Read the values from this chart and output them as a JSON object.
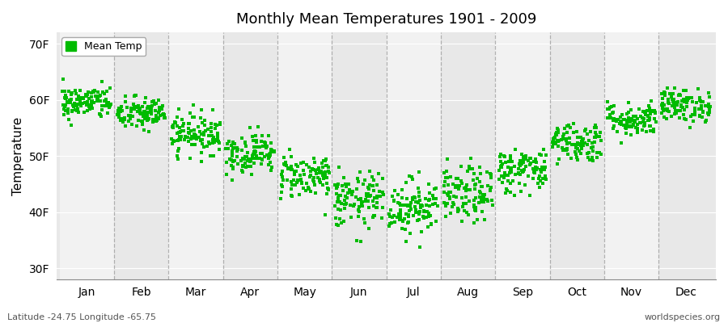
{
  "title": "Monthly Mean Temperatures 1901 - 2009",
  "ylabel": "Temperature",
  "yticks": [
    30,
    40,
    50,
    60,
    70
  ],
  "ytick_labels": [
    "30F",
    "40F",
    "50F",
    "60F",
    "70F"
  ],
  "ylim": [
    28,
    72
  ],
  "month_labels": [
    "Jan",
    "Feb",
    "Mar",
    "Apr",
    "May",
    "Jun",
    "Jul",
    "Aug",
    "Sep",
    "Oct",
    "Nov",
    "Dec"
  ],
  "dot_color": "#00BB00",
  "dot_size": 5,
  "legend_label": "Mean Temp",
  "fig_background_color": "#FFFFFF",
  "plot_background_color": "#E8E8E8",
  "band_light_color": "#F2F2F2",
  "dashed_color": "#888888",
  "subtitle_left": "Latitude -24.75 Longitude -65.75",
  "subtitle_right": "worldspecies.org",
  "n_years": 109,
  "mean_temps_F": [
    59.5,
    57.5,
    54.0,
    50.5,
    46.5,
    42.0,
    41.0,
    43.0,
    47.5,
    52.5,
    56.5,
    59.0
  ],
  "std_temps_F": [
    1.5,
    1.5,
    1.8,
    1.8,
    2.0,
    2.5,
    2.5,
    2.5,
    2.0,
    1.8,
    1.5,
    1.5
  ]
}
